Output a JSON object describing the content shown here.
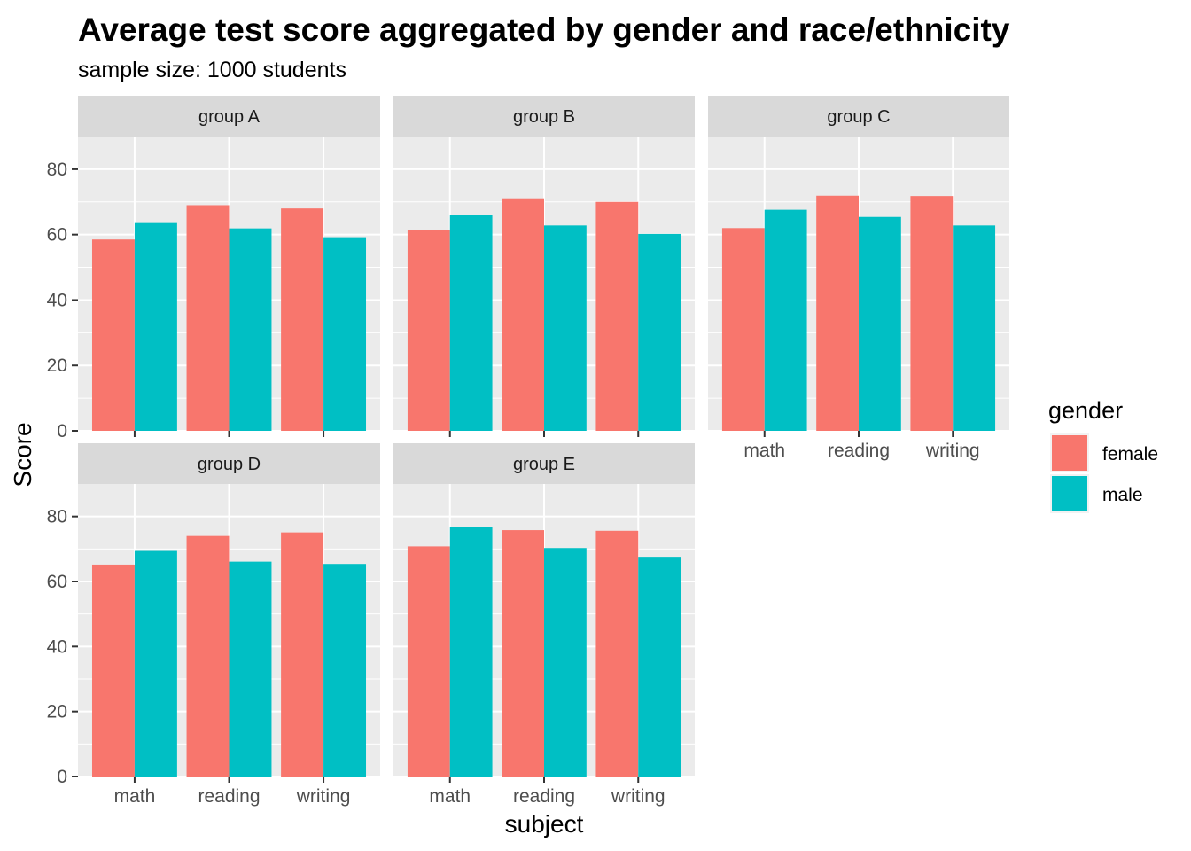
{
  "chart_data": {
    "type": "bar",
    "title": "Average test score aggregated by gender and race/ethnicity",
    "subtitle": "sample size: 1000 students",
    "xlabel": "subject",
    "ylabel": "Score",
    "ylim": [
      0,
      90
    ],
    "yticks": [
      0,
      20,
      40,
      60,
      80
    ],
    "categories": [
      "math",
      "reading",
      "writing"
    ],
    "grid": true,
    "legend": {
      "title": "gender",
      "position": "right",
      "entries": [
        {
          "name": "female",
          "color": "#F8766D"
        },
        {
          "name": "male",
          "color": "#00BFC4"
        }
      ]
    },
    "facets": [
      {
        "label": "group A",
        "series": [
          {
            "name": "female",
            "values": [
              58.5,
              69.0,
              68.0
            ]
          },
          {
            "name": "male",
            "values": [
              63.8,
              61.9,
              59.2
            ]
          }
        ]
      },
      {
        "label": "group B",
        "series": [
          {
            "name": "female",
            "values": [
              61.4,
              71.1,
              70.0
            ]
          },
          {
            "name": "male",
            "values": [
              65.9,
              62.8,
              60.2
            ]
          }
        ]
      },
      {
        "label": "group C",
        "series": [
          {
            "name": "female",
            "values": [
              62.0,
              71.9,
              71.8
            ]
          },
          {
            "name": "male",
            "values": [
              67.6,
              65.4,
              62.8
            ]
          }
        ]
      },
      {
        "label": "group D",
        "series": [
          {
            "name": "female",
            "values": [
              65.2,
              74.0,
              75.1
            ]
          },
          {
            "name": "male",
            "values": [
              69.4,
              66.1,
              65.4
            ]
          }
        ]
      },
      {
        "label": "group E",
        "series": [
          {
            "name": "female",
            "values": [
              70.8,
              75.8,
              75.6
            ]
          },
          {
            "name": "male",
            "values": [
              76.7,
              70.3,
              67.6
            ]
          }
        ]
      }
    ]
  }
}
